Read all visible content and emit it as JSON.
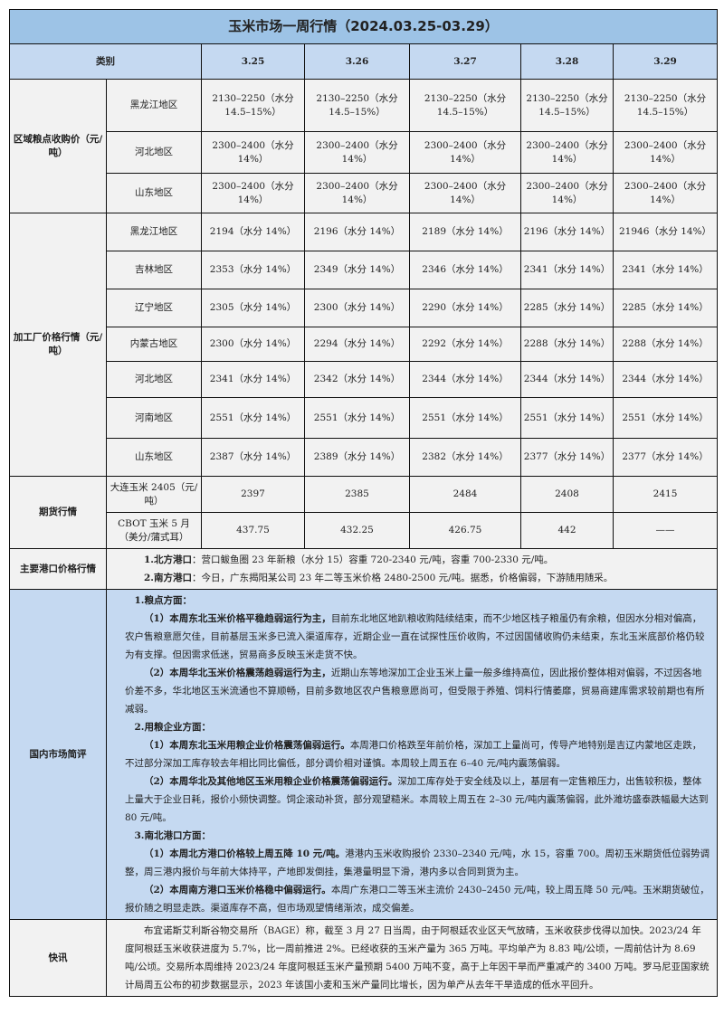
{
  "title": "玉米市场一周行情（2024.03.25-03.29）",
  "header": {
    "category": "类别",
    "dates": [
      "3.25",
      "3.26",
      "3.27",
      "3.28",
      "3.29"
    ]
  },
  "groups": [
    {
      "label": "区域粮点收购价（元/吨）",
      "rows": [
        {
          "region": "黑龙江地区",
          "values": [
            "2130–2250（水分14.5–15%）",
            "2130–2250（水分 14.5–15%）",
            "2130–2250（水分 14.5–15%）",
            "2130–2250（水分14.5–15%）",
            "2130–2250（水分 14.5–15%）"
          ]
        },
        {
          "region": "河北地区",
          "values": [
            "2300–2400（水分 14%）",
            "2300–2400（水分 14%）",
            "2300–2400（水分 14%）",
            "2300–2400（水分 14%）",
            "2300–2400（水分 14%）"
          ]
        },
        {
          "region": "山东地区",
          "values": [
            "2300–2400（水分 14%）",
            "2300–2400（水分 14%）",
            "2300–2400（水分 14%）",
            "2300–2400（水分 14%）",
            "2300–2400（水分 14%）"
          ]
        }
      ]
    },
    {
      "label": "加工厂价格行情（元/吨）",
      "rows": [
        {
          "region": "黑龙江地区",
          "values": [
            "2194（水分 14%）",
            "2196（水分 14%）",
            "2189（水分 14%）",
            "2196（水分 14%）",
            "21946（水分 14%）"
          ]
        },
        {
          "region": "吉林地区",
          "values": [
            "2353（水分 14%）",
            "2349（水分 14%）",
            "2346（水分 14%）",
            "2341（水分 14%）",
            "2341（水分 14%）"
          ]
        },
        {
          "region": "辽宁地区",
          "values": [
            "2305（水分 14%）",
            "2300（水分 14%）",
            "2290（水分 14%）",
            "2285（水分 14%）",
            "2285（水分 14%）"
          ]
        },
        {
          "region": "内蒙古地区",
          "values": [
            "2300（水分 14%）",
            "2294（水分 14%）",
            "2292（水分 14%）",
            "2288（水分 14%）",
            "2288（水分 14%）"
          ]
        },
        {
          "region": "河北地区",
          "values": [
            "2341（水分 14%）",
            "2342（水分 14%）",
            "2344（水分 14%）",
            "2344（水分 14%）",
            "2344（水分 14%）"
          ]
        },
        {
          "region": "河南地区",
          "values": [
            "2551（水分 14%）",
            "2551（水分 14%）",
            "2551（水分 14%）",
            "2551（水分 14%）",
            "2551（水分 14%）"
          ]
        },
        {
          "region": "山东地区",
          "values": [
            "2387（水分 14%）",
            "2389（水分 14%）",
            "2382（水分 14%）",
            "2377（水分 14%）",
            "2377（水分 14%）"
          ]
        }
      ]
    },
    {
      "label": "期货行情",
      "rows": [
        {
          "region": "大连玉米 2405（元/吨）",
          "values": [
            "2397",
            "2385",
            "2484",
            "2408",
            "2415"
          ]
        },
        {
          "region": "CBOT 玉米 5 月（美分/蒲式耳）",
          "values": [
            "437.75",
            "432.25",
            "426.75",
            "442",
            "——"
          ]
        }
      ]
    }
  ],
  "ports": {
    "label": "主要港口价格行情",
    "items": [
      {
        "bold": "1.北方港口",
        "text": "：营口鲅鱼圈 23 年新粮（水分 15）容重 720-2340 元/吨，容重 700-2330 元/吨。"
      },
      {
        "bold": "2.南方港口",
        "text": "：今日，广东揭阳某公司 23 年二等玉米价格 2480-2500 元/吨。据悉，价格偏弱，下游随用随采。"
      }
    ]
  },
  "market": {
    "label": "国内市场简评",
    "paragraphs": [
      {
        "heading": "1.粮点方面："
      },
      {
        "bold": "（1）本周东北玉米价格平稳趋弱运行为主，",
        "text": "目前东北地区地趴粮收购陆续结束，而不少地区栈子粮虽仍有余粮，但因水分相对偏高，农户售粮意愿欠佳，目前基层玉米多已流入渠道库存，近期企业一直在试探性压价收购，不过因国储收购仍未结束，东北玉米底部价格仍较为有支撑。但因需求低迷，贸易商多反映玉米走货不快。"
      },
      {
        "bold": "（2）本周华北玉米价格震荡趋弱运行为主，",
        "text": "近期山东等地深加工企业玉米上量一般多维持高位，因此报价整体相对偏弱，不过因各地价差不多，华北地区玉米流通也不算顺畅，目前多数地区农户售粮意愿尚可，但受限于养殖、饲料行情萎靡，贸易商建库需求较前期也有所减弱。"
      },
      {
        "heading": "2.用粮企业方面："
      },
      {
        "bold": "（1）本周东北玉米用粮企业价格震荡偏弱运行。",
        "text": "本周港口价格跌至年前价格，深加工上量尚可，传导产地特别是吉辽内蒙地区走跌，不过部分深加工库存较去年相比同比偏低，部分调价相对谨慎。本周较上周五在 6–40 元/吨内震荡偏弱。"
      },
      {
        "bold": "（2）本周华北及其他地区玉米用粮企业价格震荡偏弱运行。",
        "text": "深加工库存处于安全线及以上，基层有一定售粮压力，出售较积极，整体上量大于企业日耗，报价小频快调整。饲企滚动补货，部分观望糙米。本周较上周五在 2–30 元/吨内震荡偏弱，此外潍坊盛泰跌幅最大达到 80 元/吨。"
      },
      {
        "heading": "3.南北港口方面："
      },
      {
        "bold": "（1）本周北方港口价格较上周五降 10 元/吨。",
        "text": "港港内玉米收购报价 2330–2340 元/吨，水 15，容重 700。周初玉米期货低位弱势调整，周三港内报价与年前大体持平，产地即发倒挂，集港量明显下滑，港内多以合同到货为主。"
      },
      {
        "bold": "（2）本周南方港口玉米价格稳中偏弱运行。",
        "text": "本周广东港口二等玉米主流价 2430–2450 元/吨，较上周五降 50 元/吨。玉米期货破位，报价随之明显走跌。渠道库存不高，但市场观望情绪渐浓，成交偏差。"
      }
    ]
  },
  "news": {
    "label": "快讯",
    "text": "布宜诺斯艾利斯谷物交易所（BAGE）称，截至 3 月 27 日当周，由于阿根廷农业区天气放晴，玉米收获步伐得以加快。2023/24 年度阿根廷玉米收获进度为 5.7%，比一周前推进 2%。已经收获的玉米产量为 365 万吨。平均单产为 8.83 吨/公顷，一周前估计为 8.69 吨/公顷。交易所本周维持 2023/24 年度阿根廷玉米产量预期 5400 万吨不变，高于上年因干旱而严重减产的 3400 万吨。罗马尼亚国家统计局周五公布的初步数据显示，2023 年该国小麦和玉米产量同比增长，因为单产从去年干旱造成的低水平回升。"
  }
}
